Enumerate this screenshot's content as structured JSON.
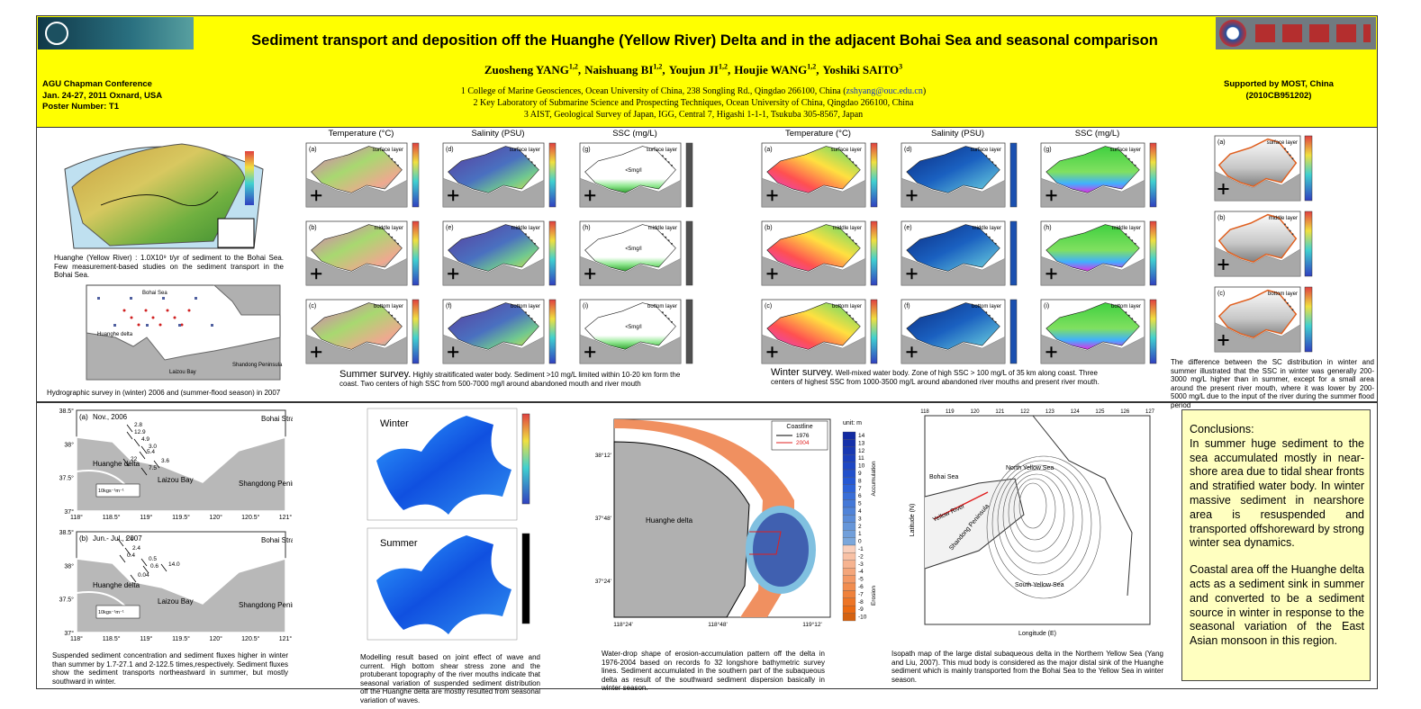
{
  "header": {
    "title": "Sediment transport and deposition off the Huanghe (Yellow River) Delta and in the adjacent Bohai Sea and seasonal comparison",
    "authors": [
      {
        "name": "Zuosheng YANG",
        "sup": "1,2"
      },
      {
        "name": "Naishuang BI",
        "sup": "1,2"
      },
      {
        "name": "Youjun JI",
        "sup": "1,2"
      },
      {
        "name": "Houjie WANG",
        "sup": "1,2"
      },
      {
        "name": "Yoshiki SAITO",
        "sup": "3"
      }
    ],
    "affiliations": [
      {
        "text": "1 College of Marine Geosciences, Ocean University of China, 238 Songling Rd., Qingdao 266100, China (",
        "email": "zshyang@ouc.edu.cn",
        "after": ")"
      },
      {
        "text": "2 Key Laboratory of Submarine Science and Prospecting Techniques, Ocean University of China, Qingdao 266100, China"
      },
      {
        "text": "3 AIST, Geological Survey of Japan, IGG, Central 7, Higashi 1-1-1, Tsukuba 305-8567, Japan"
      }
    ],
    "conference": [
      "AGU Chapman Conference",
      "Jan. 24-27, 2011   Oxnard, USA",
      "Poster Number: T1"
    ],
    "support": [
      "Supported by MOST, China",
      "(2010CB951202)"
    ]
  },
  "overview": {
    "caption1": "Huanghe (Yellow River) :  1.0X10⁹ t/yr of sediment to the Bohai Sea. Few measurement-based studies on the sediment transport in the Bohai Sea.",
    "labels": [
      "Bohai Sea",
      "Huanghe delta",
      "Laizou Bay",
      "Shandong Peninsula"
    ],
    "caption2": "Hydrographic survey in (winter) 2006 and (summer-flood season) in 2007"
  },
  "summer": {
    "heading": "Summer survey.",
    "body": "Highly straitificated water body. Sediment >10 mg/L limited within 10-20 km form the coast. Two centers of high SSC from 500-7000 mg/l around abandoned mouth and river mouth",
    "columns": [
      "Temperature (°C)",
      "Salinity (PSU)",
      "SSC (mg/L)"
    ],
    "panels": [
      {
        "label": "(a)",
        "layer": "surface layer"
      },
      {
        "label": "(b)",
        "layer": "middle layer"
      },
      {
        "label": "(c)",
        "layer": "bottom layer"
      },
      {
        "label": "(d)",
        "layer": "surface layer"
      },
      {
        "label": "(e)",
        "layer": "middle layer"
      },
      {
        "label": "(f)",
        "layer": "bottom layer"
      },
      {
        "label": "(g)",
        "layer": "surface layer",
        "note": "<5mg/l"
      },
      {
        "label": "(h)",
        "layer": "middle layer",
        "note": "<5mg/l"
      },
      {
        "label": "(i)",
        "layer": "bottom layer",
        "note": "<5mg/l"
      }
    ]
  },
  "winter": {
    "heading": "Winter survey.",
    "body": "Well-mixed water body. Zone of high SSC > 100 mg/L of 35 km along coast. Three centers of highest SSC from 1000-3500 mg/L around abandoned river mouths and present river mouth.",
    "columns": [
      "Temperature (°C)",
      "Salinity (PSU)",
      "SSC (mg/L)"
    ],
    "panels": [
      {
        "label": "(a)",
        "layer": "surface layer"
      },
      {
        "label": "(b)",
        "layer": "middle layer"
      },
      {
        "label": "(c)",
        "layer": "bottom layer"
      },
      {
        "label": "(d)",
        "layer": "surface layer"
      },
      {
        "label": "(e)",
        "layer": "middle layer"
      },
      {
        "label": "(f)",
        "layer": "bottom layer"
      },
      {
        "label": "(g)",
        "layer": "surface layer"
      },
      {
        "label": "(h)",
        "layer": "middle layer"
      },
      {
        "label": "(i)",
        "layer": "bottom layer"
      }
    ]
  },
  "difference": {
    "panels": [
      {
        "label": "(a)",
        "layer": "surface layer"
      },
      {
        "label": "(b)",
        "layer": "middle layer"
      },
      {
        "label": "(c)",
        "layer": "bottom layer"
      }
    ],
    "caption": "The difference between the SC distribution in winter and summer illustrated that the SSC in winter was generally 200-3000 mg/L higher than in summer, except for a small area around the present river mouth, where it was lower by 200-5000 mg/L due to the input of the river during the summer flood period"
  },
  "flux": {
    "maps": [
      {
        "label": "(a)",
        "date": "Nov., 2006",
        "values": [
          "2.8",
          "12.9",
          "4.9",
          "3.0",
          "5.4",
          "22",
          "3.6",
          "7.5"
        ]
      },
      {
        "label": "(b)",
        "date": "Jun.- Jul., 2007",
        "values": [
          "1.4",
          "2.4",
          "0.4",
          "0.5",
          "0.6",
          "0.04",
          "14.0"
        ]
      }
    ],
    "scale": "10kgs⁻¹m⁻¹",
    "places": [
      "Bohai Strait",
      "Huanghe delta",
      "Laizou Bay",
      "Shangdong Peninsula"
    ],
    "xticks": [
      "118°",
      "118.5°",
      "119°",
      "119.5°",
      "120°",
      "120.5°",
      "121°"
    ],
    "yticks": [
      "38.5°",
      "38°",
      "37.5°",
      "37°"
    ],
    "caption": "Suspended sediment concentration and sediment fluxes higher in winter than summer by 1.7-27.1 and 2-122.5 times,respectively. Sediment fluxes show the sediment transports northeastward in summer, but mostly southward in winter."
  },
  "model": {
    "labels": [
      "Winter",
      "Summer"
    ],
    "caption": "Modelling result based on joint effect of wave and current. High bottom shear stress zone and the protuberant topography of the river mouths indicate that seasonal variation of suspended sediment distribution off the Huanghe delta are mostly resulted from seasonal variation of waves."
  },
  "bathymetry": {
    "legend_title": "Coastline",
    "legend": [
      "1976",
      "2004"
    ],
    "unit": "unit: m",
    "land": "Huanghe delta",
    "yticks": [
      "38°12'",
      "37°48'",
      "37°24'"
    ],
    "xticks": [
      "118°24'",
      "118°48'",
      "119°12'"
    ],
    "scale": [
      14,
      13,
      12,
      11,
      10,
      9,
      8,
      7,
      6,
      5,
      4,
      3,
      2,
      1,
      0,
      -1,
      -2,
      -3,
      -4,
      -5,
      -6,
      -7,
      -8,
      -9,
      -10
    ],
    "accumulation": "Accumulation",
    "erosion": "Erosion",
    "caption": "Water-drop shape of erosion-accumulation pattern off the delta in 1976-2004 based on records fo 32 longshore bathymetric survey lines. Sediment accumulated in the southern part of the subaqueous delta as result of the southward sediment dispersion basically in winter season."
  },
  "isopath": {
    "xticks": [
      "118",
      "119",
      "120",
      "121",
      "122",
      "123",
      "124",
      "125",
      "126",
      "127"
    ],
    "labels": [
      "Bohai Sea",
      "North Yellow Sea",
      "Yellow River",
      "Shandong Peninsula",
      "South Yellow Sea"
    ],
    "xlabel": "Longitude (E)",
    "ylabel": "Latitude (N)",
    "caption": "Isopath map of the large distal subaqueous delta in the Northern Yellow Sea (Yang and Liu, 2007). This mud body is considered as the major distal sink of the Huanghe sediment which is mainly transported from the Bohai Sea to the Yellow Sea in winter season."
  },
  "conclusions": {
    "title": "Conclusions:",
    "paragraphs": [
      "In summer huge sediment to the sea accumulated mostly in near-shore area due to tidal shear fronts and stratified water body. In winter massive sediment in nearshore area is resuspended and transported offshoreward by strong winter sea dynamics.",
      "Coastal area off the Huanghe delta acts as a sediment sink in summer and converted to be a sediment source in winter in response to the seasonal variation of the East Asian monsoon in this region."
    ]
  }
}
